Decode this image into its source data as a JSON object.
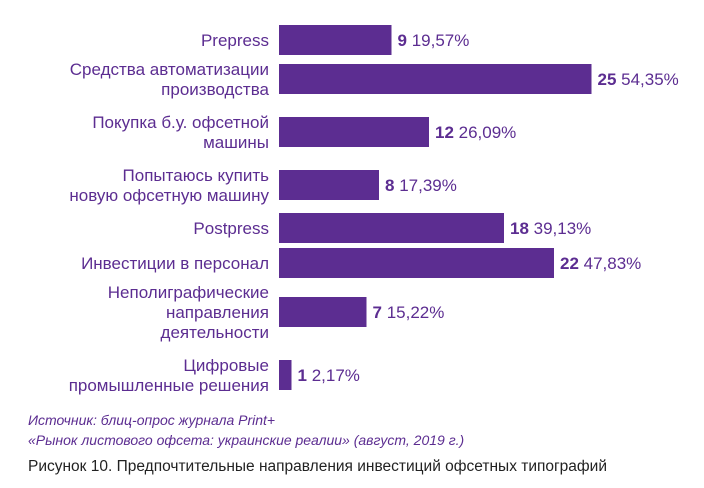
{
  "chart_data": {
    "type": "bar",
    "orientation": "horizontal",
    "categories": [
      [
        "Prepress"
      ],
      [
        "Средства автоматизации",
        "производства"
      ],
      [
        "Покупка б.у. офсетной",
        "машины"
      ],
      [
        "Попытаюсь купить",
        "новую офсетную машину"
      ],
      [
        "Postpress"
      ],
      [
        "Инвестиции в персонал"
      ],
      [
        "Неполиграфические",
        "направления",
        "деятельности"
      ],
      [
        "Цифровые",
        "промышленные решения"
      ]
    ],
    "values": [
      9,
      25,
      12,
      8,
      18,
      22,
      7,
      1
    ],
    "percent_labels": [
      "19,57%",
      "54,35%",
      "26,09%",
      "17,39%",
      "39,13%",
      "47,83%",
      "15,22%",
      "2,17%"
    ],
    "bar_color": "#5c2d91"
  },
  "source": {
    "line1": "Источник: блиц-опрос журнала Print+",
    "line2": "«Рынок листового офсета: украинские реалии» (август, 2019 г.)"
  },
  "caption": "Рисунок 10. Предпочтительные направления инвестиций офсетных типографий"
}
